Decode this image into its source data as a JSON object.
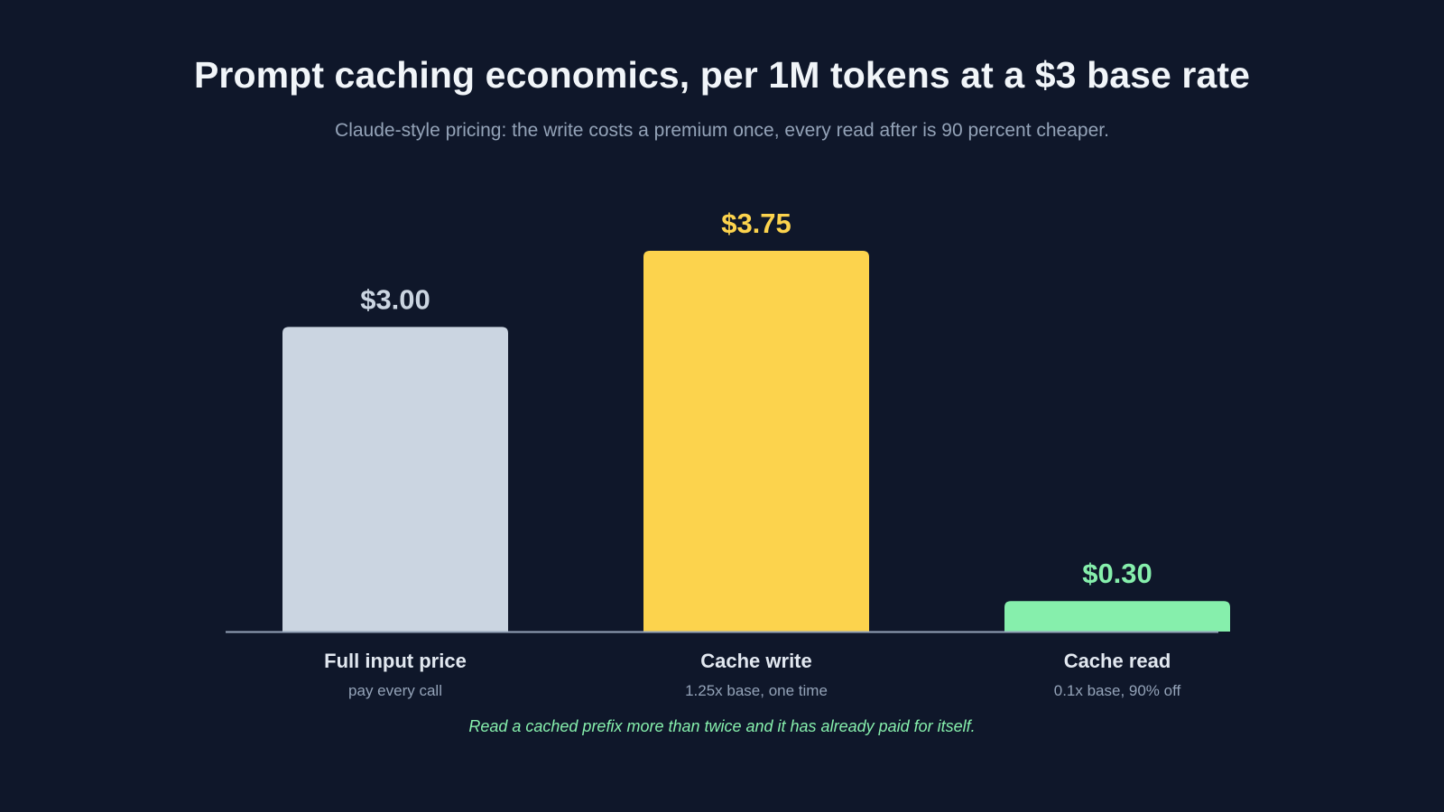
{
  "title": "Prompt caching economics, per 1M tokens at a $3 base rate",
  "subtitle": "Claude-style pricing: the write costs a premium once, every read after is 90 percent cheaper.",
  "footnote": "Read a cached prefix more than twice and it has already paid for itself.",
  "chart_data": {
    "type": "bar",
    "title": "Prompt caching economics, per 1M tokens at a $3 base rate",
    "xlabel": "",
    "ylabel": "",
    "ylim": [
      0,
      3.75
    ],
    "grid": false,
    "categories": [
      "Full input price",
      "Cache write",
      "Cache read"
    ],
    "sublabels": [
      "pay every call",
      "1.25x base, one time",
      "0.1x base, 90% off"
    ],
    "values": [
      3.0,
      3.75,
      0.3
    ],
    "value_labels": [
      "$3.00",
      "$3.75",
      "$0.30"
    ],
    "colors": [
      "#cbd5e1",
      "#fcd34d",
      "#86efac"
    ]
  }
}
